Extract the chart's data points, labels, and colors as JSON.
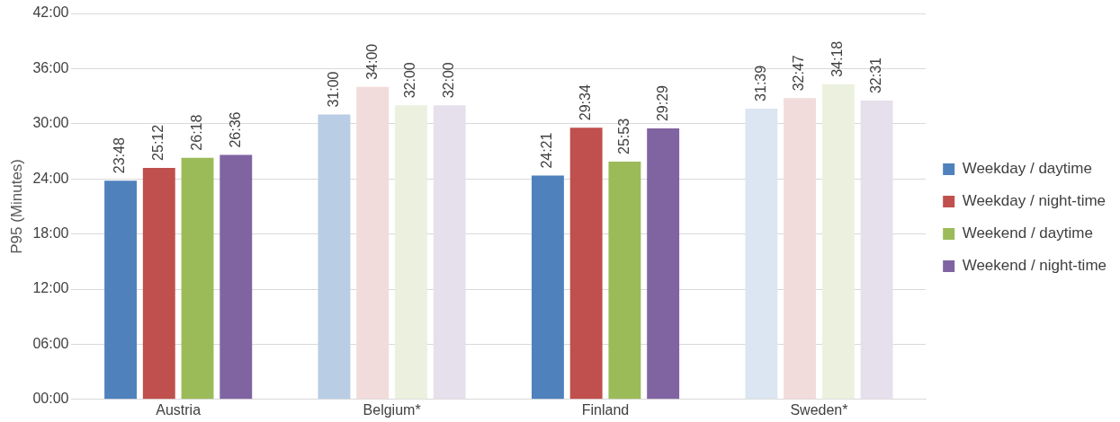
{
  "chart_data": {
    "type": "bar",
    "ylabel": "P95 (Minutes)",
    "categories": [
      "Austria",
      "Belgium*",
      "Finland",
      "Sweden*"
    ],
    "ylim": [
      0,
      42
    ],
    "yticks": [
      {
        "value": 0,
        "label": "00:00"
      },
      {
        "value": 6,
        "label": "06:00"
      },
      {
        "value": 12,
        "label": "12:00"
      },
      {
        "value": 18,
        "label": "18:00"
      },
      {
        "value": 24,
        "label": "24:00"
      },
      {
        "value": 30,
        "label": "30:00"
      },
      {
        "value": 36,
        "label": "36:00"
      },
      {
        "value": 42,
        "label": "42:00"
      }
    ],
    "grid": "y",
    "legend": "right",
    "series": [
      {
        "name": "Weekday / daytime",
        "color": "#4f81bd",
        "colors": [
          "#4f81bd",
          "#b9cde5",
          "#4f81bd",
          "#dce6f2"
        ],
        "values": [
          23.8,
          31,
          24.35,
          31.65
        ],
        "value_labels": [
          "23:48",
          "31:00",
          "24:21",
          "31:39"
        ]
      },
      {
        "name": "Weekday / night-time",
        "color": "#c0504d",
        "colors": [
          "#c0504d",
          "#f2dcdb",
          "#c0504d",
          "#f2dcdb"
        ],
        "values": [
          25.2,
          34,
          29.567,
          32.783
        ],
        "value_labels": [
          "25:12",
          "34:00",
          "29:34",
          "32:47"
        ]
      },
      {
        "name": "Weekend / daytime",
        "color": "#9bbb59",
        "colors": [
          "#9bbb59",
          "#ebf1de",
          "#9bbb59",
          "#ebf1de"
        ],
        "values": [
          26.3,
          32,
          25.883,
          34.3
        ],
        "value_labels": [
          "26:18",
          "32:00",
          "25:53",
          "34:18"
        ]
      },
      {
        "name": "Weekend / night-time",
        "color": "#8064a2",
        "colors": [
          "#8064a2",
          "#e6e0ec",
          "#8064a2",
          "#e6e0ec"
        ],
        "values": [
          26.6,
          32,
          29.483,
          32.517
        ],
        "value_labels": [
          "26:36",
          "32:00",
          "29:29",
          "32:31"
        ]
      }
    ]
  }
}
